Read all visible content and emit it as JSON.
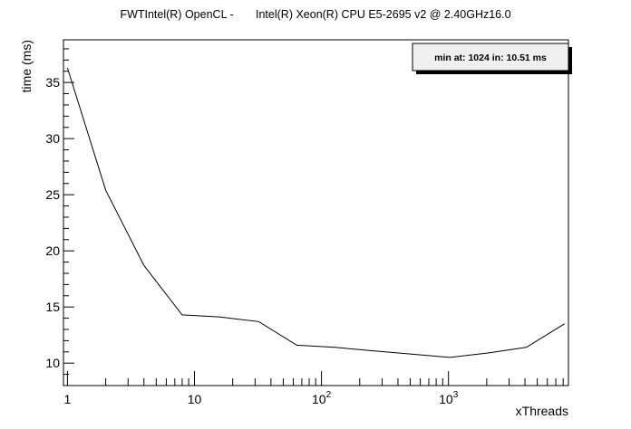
{
  "chart_data": {
    "type": "line",
    "title": "FWTIntel(R) OpenCL -       Intel(R) Xeon(R) CPU E5-2695 v2 @ 2.40GHz16.0",
    "xlabel": "xThreads",
    "ylabel": "time (ms)",
    "x_scale": "log",
    "xlim": [
      0.93,
      8800
    ],
    "ylim": [
      8.0,
      38.8
    ],
    "x_ticks": [
      {
        "value": 1,
        "base": "1",
        "exp": ""
      },
      {
        "value": 10,
        "base": "10",
        "exp": ""
      },
      {
        "value": 100,
        "base": "10",
        "exp": "2"
      },
      {
        "value": 1000,
        "base": "10",
        "exp": "3"
      }
    ],
    "y_ticks": [
      "10",
      "15",
      "20",
      "25",
      "30",
      "35"
    ],
    "grid": false,
    "legend": null,
    "series": [
      {
        "x": [
          1,
          2,
          4,
          8,
          16,
          32,
          64,
          128,
          256,
          512,
          1024,
          2048,
          4096,
          8192
        ],
        "values": [
          36.3,
          25.4,
          18.7,
          14.3,
          14.1,
          13.7,
          11.6,
          11.4,
          11.1,
          10.8,
          10.51,
          10.9,
          11.4,
          13.5
        ]
      }
    ],
    "annotation": "min at: 1024 in: 10.51 ms"
  }
}
